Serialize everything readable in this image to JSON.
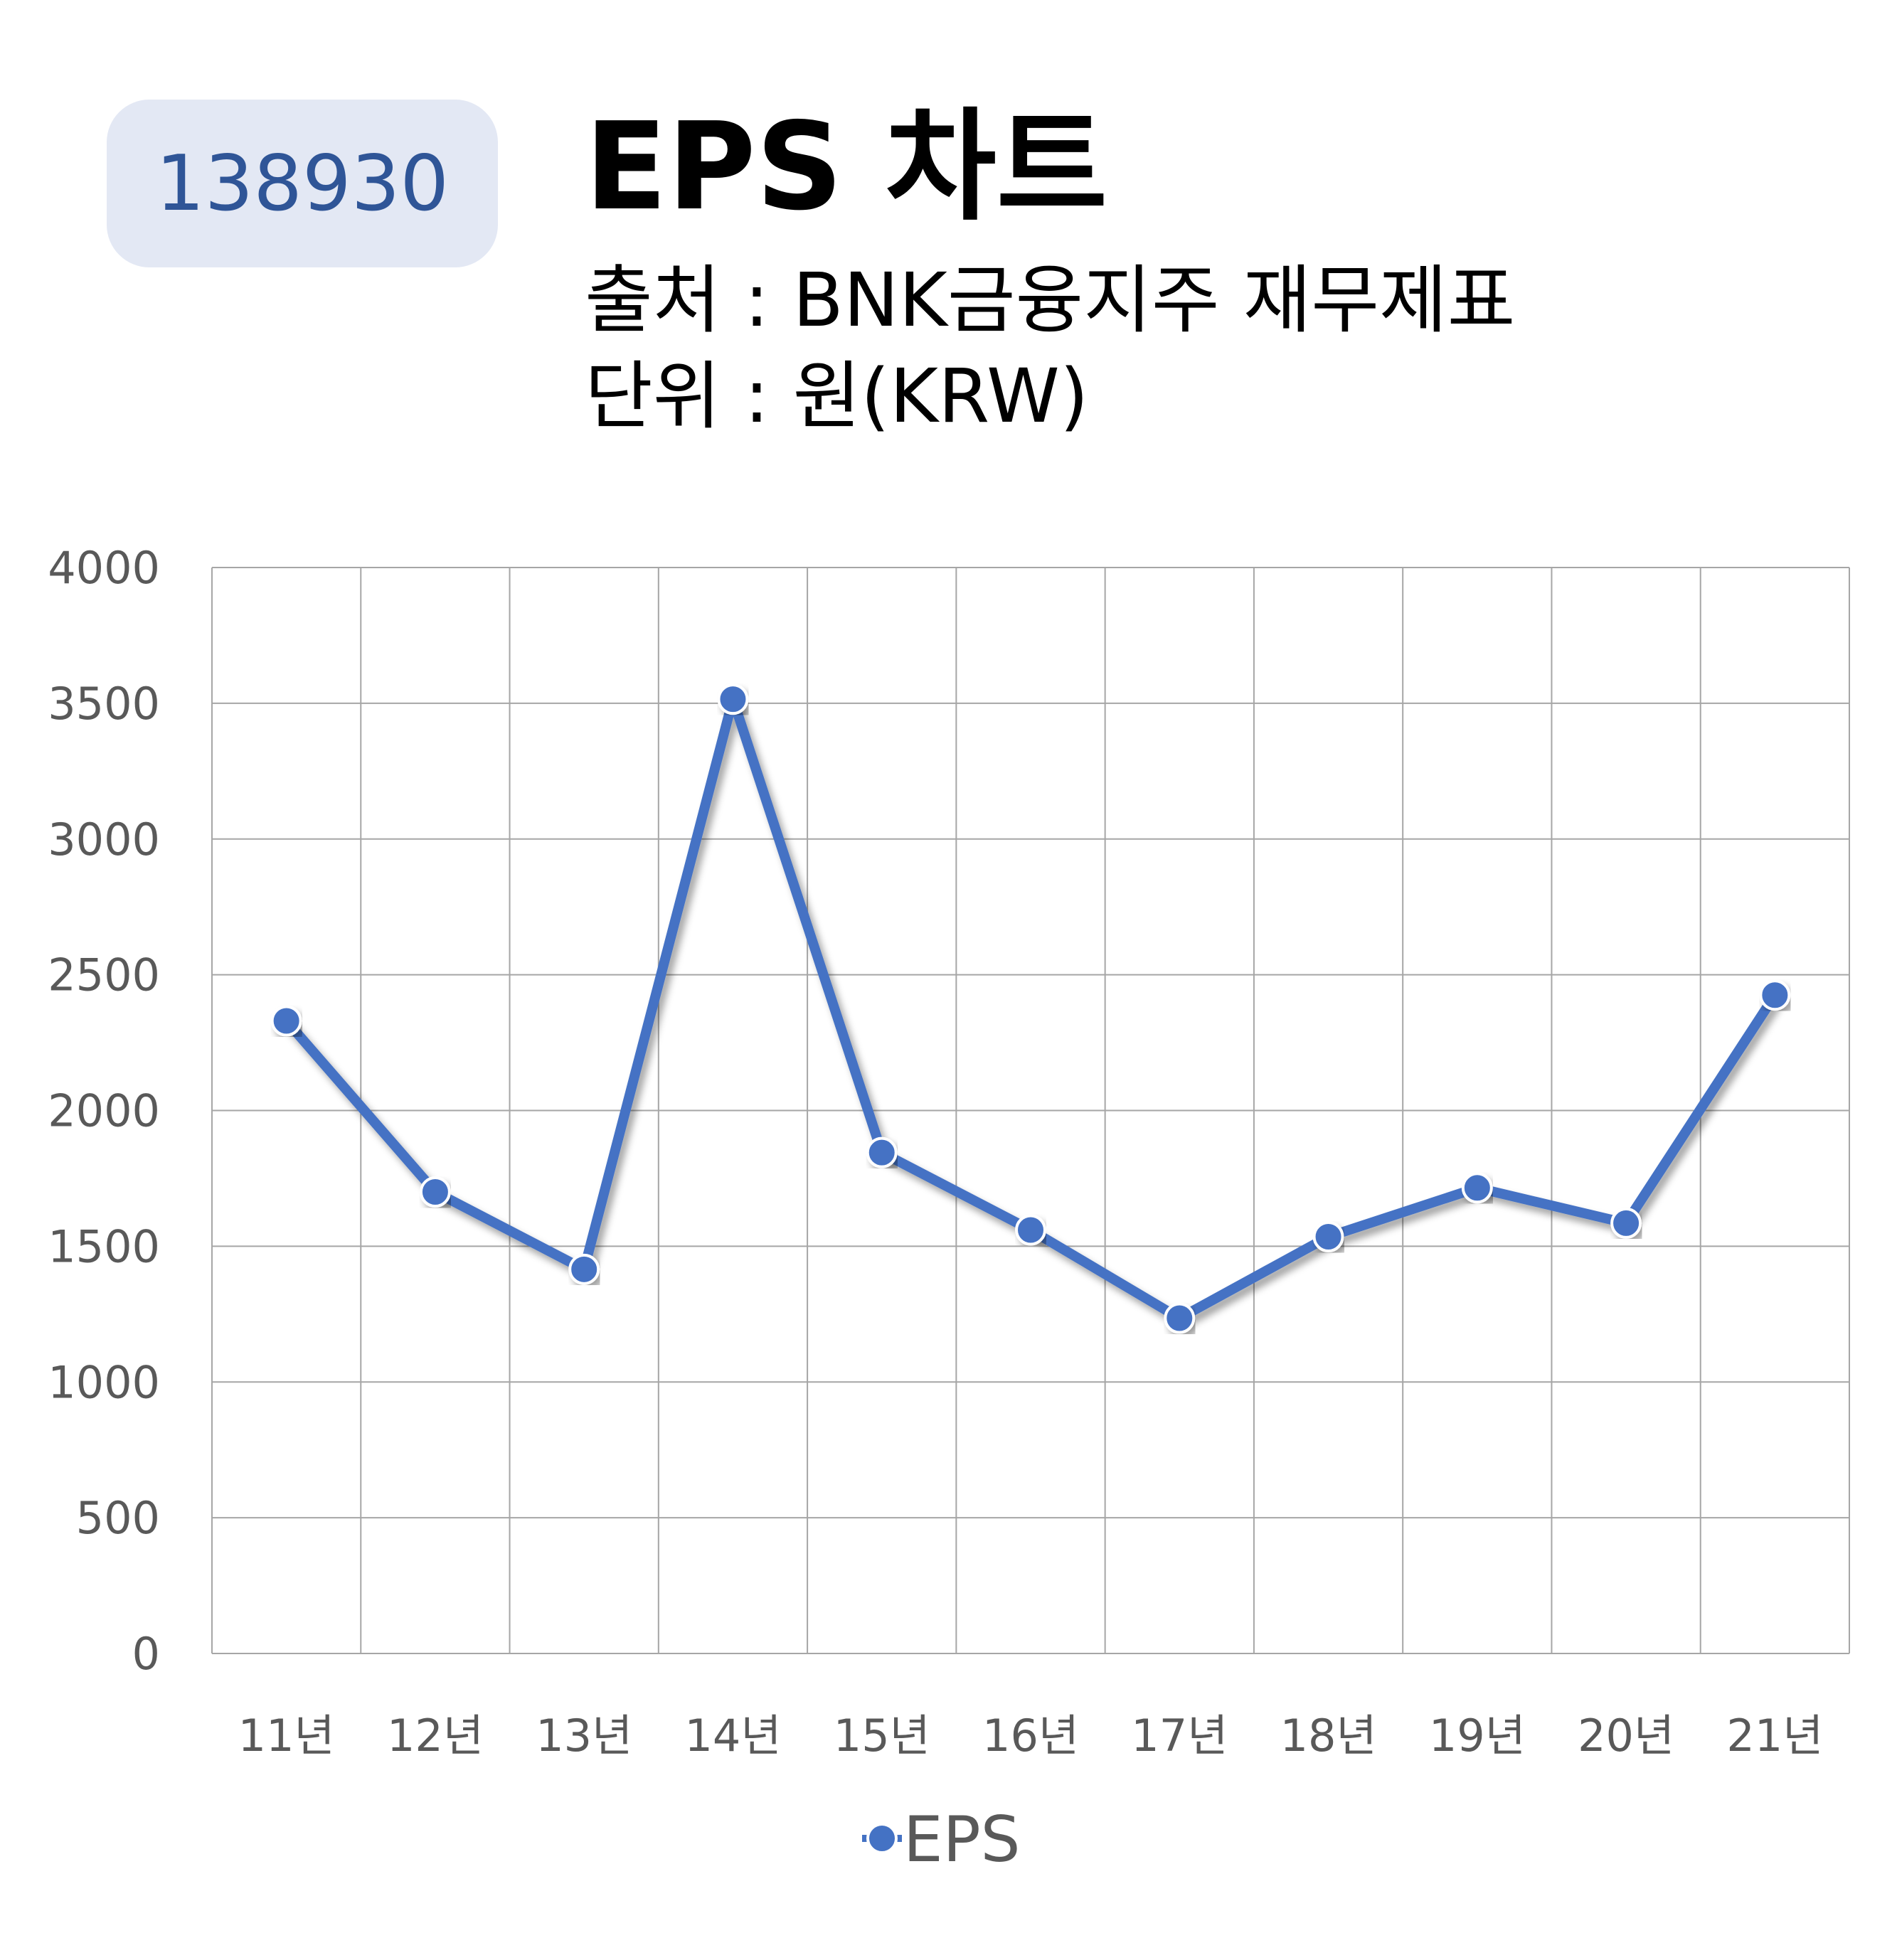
{
  "badge": "138930",
  "title": "EPS 차트",
  "source": "출처 : BNK금융지주 재무제표",
  "unit": "단위 : 원(KRW)",
  "colors": {
    "line": "#4472c4",
    "badge_bg": "#e3e8f4",
    "badge_text": "#2f5597",
    "grid": "#a6a6a6"
  },
  "chart_data": {
    "type": "line",
    "categories": [
      "11년",
      "12년",
      "13년",
      "14년",
      "15년",
      "16년",
      "17년",
      "18년",
      "19년",
      "20년",
      "21년"
    ],
    "series": [
      {
        "name": "EPS",
        "values": [
          2330,
          1700,
          1415,
          3515,
          1845,
          1560,
          1235,
          1535,
          1715,
          1585,
          2425
        ]
      }
    ],
    "yticks": [
      "0",
      "500",
      "1000",
      "1500",
      "2000",
      "2500",
      "3000",
      "3500",
      "4000"
    ],
    "ylim": [
      0,
      4000
    ],
    "grid": true,
    "legend_position": "bottom"
  }
}
